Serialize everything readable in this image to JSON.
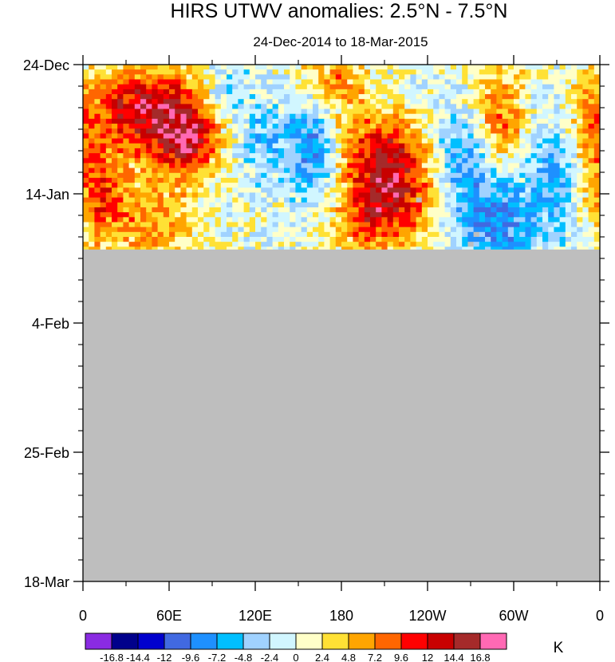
{
  "chart_data": {
    "type": "heatmap",
    "title": "HIRS UTWV anomalies: 2.5°N - 7.5°N",
    "subtitle": "24-Dec-2014 to 18-Mar-2015",
    "x_ticks": [
      "0",
      "60E",
      "120E",
      "180",
      "120W",
      "60W",
      "0"
    ],
    "x_tick_values": [
      0,
      60,
      120,
      180,
      240,
      300,
      360
    ],
    "xlim": [
      0,
      360
    ],
    "y_ticks": [
      "24-Dec",
      "14-Jan",
      "4-Feb",
      "25-Feb",
      "18-Mar"
    ],
    "y_tick_days": [
      0,
      21,
      42,
      63,
      84
    ],
    "ylim_days": [
      0,
      84
    ],
    "data_end_day": 30,
    "missing_color": "#bebebe",
    "colorbar": {
      "unit": "K",
      "levels": [
        "-16.8",
        "-14.4",
        "-12",
        "-9.6",
        "-7.2",
        "-4.8",
        "-2.4",
        "0",
        "2.4",
        "4.8",
        "7.2",
        "9.6",
        "12",
        "14.4",
        "16.8"
      ],
      "level_values": [
        -16.8,
        -14.4,
        -12,
        -9.6,
        -7.2,
        -4.8,
        -2.4,
        0,
        2.4,
        4.8,
        7.2,
        9.6,
        12,
        14.4,
        16.8
      ],
      "colors": [
        "#8a2be2",
        "#00008b",
        "#0000cd",
        "#4169e1",
        "#1e90ff",
        "#00bfff",
        "#a0d2ff",
        "#d1f6ff",
        "#ffffc8",
        "#ffe135",
        "#ffa500",
        "#ff6600",
        "#ff0000",
        "#c80000",
        "#a52a2a",
        "#ff69b4"
      ]
    },
    "blobs": [
      {
        "lon": 65,
        "day": 9,
        "rlon": 22,
        "rday": 6,
        "amp": 14
      },
      {
        "lon": 75,
        "day": 13,
        "rlon": 12,
        "rday": 3,
        "amp": 6
      },
      {
        "lon": 30,
        "day": 7,
        "rlon": 15,
        "rday": 4,
        "amp": 9
      },
      {
        "lon": 12,
        "day": 21,
        "rlon": 14,
        "rday": 6,
        "amp": 9
      },
      {
        "lon": 215,
        "day": 21,
        "rlon": 22,
        "rday": 5,
        "amp": 13
      },
      {
        "lon": 210,
        "day": 13,
        "rlon": 22,
        "rday": 4,
        "amp": 9
      },
      {
        "lon": 175,
        "day": 3,
        "rlon": 18,
        "rday": 4,
        "amp": 7
      },
      {
        "lon": 290,
        "day": 9,
        "rlon": 12,
        "rday": 6,
        "amp": 9
      },
      {
        "lon": 355,
        "day": 9,
        "rlon": 12,
        "rday": 6,
        "amp": 7
      },
      {
        "lon": 160,
        "day": 13,
        "rlon": 12,
        "rday": 6,
        "amp": -9
      },
      {
        "lon": 125,
        "day": 12,
        "rlon": 15,
        "rday": 5,
        "amp": -5
      },
      {
        "lon": 265,
        "day": 15,
        "rlon": 18,
        "rday": 5,
        "amp": -7
      },
      {
        "lon": 290,
        "day": 25,
        "rlon": 22,
        "rday": 5,
        "amp": -9
      },
      {
        "lon": 330,
        "day": 17,
        "rlon": 12,
        "rday": 6,
        "amp": -6
      },
      {
        "lon": 95,
        "day": 4,
        "rlon": 14,
        "rday": 4,
        "amp": -5
      },
      {
        "lon": 195,
        "day": 26,
        "rlon": 15,
        "rday": 4,
        "amp": 5
      },
      {
        "lon": 50,
        "day": 26,
        "rlon": 20,
        "rday": 5,
        "amp": 6
      }
    ],
    "missing_cells": [
      {
        "lon": 234,
        "day": 22
      },
      {
        "lon": 271,
        "day": 29
      },
      {
        "lon": 272,
        "day": 28
      }
    ]
  }
}
